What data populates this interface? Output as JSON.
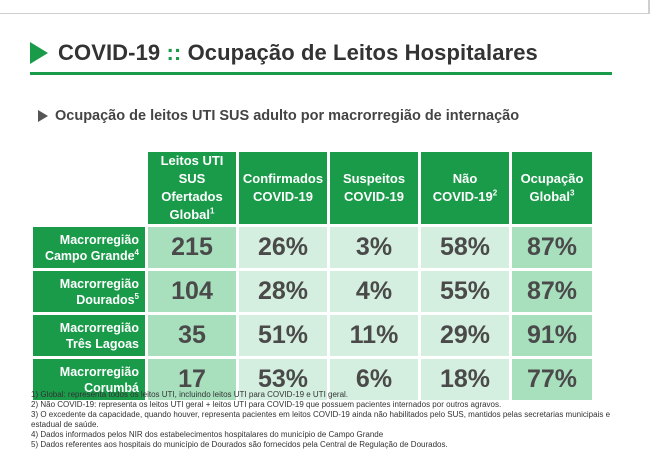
{
  "header": {
    "title_main": "COVID-19",
    "title_sep": "::",
    "title_rest": "Ocupação de Leitos Hospitalares"
  },
  "subtitle": "Ocupação de leitos UTI SUS adulto por macrorregião de internação",
  "table": {
    "columns": [
      {
        "line1": "Leitos UTI SUS",
        "line2": "Ofertados",
        "line3": "Global",
        "sup": "1"
      },
      {
        "line1": "Confirmados",
        "line2": "COVID-19",
        "line3": "",
        "sup": ""
      },
      {
        "line1": "Suspeitos",
        "line2": "COVID-19",
        "line3": "",
        "sup": ""
      },
      {
        "line1": "Não",
        "line2": "COVID-19",
        "line3": "",
        "sup": "2"
      },
      {
        "line1": "Ocupação",
        "line2": "Global",
        "line3": "",
        "sup": "3"
      }
    ],
    "rows": [
      {
        "line1": "Macrorregião",
        "line2": "Campo Grande",
        "sup": "4",
        "values": [
          "215",
          "26%",
          "3%",
          "58%",
          "87%"
        ]
      },
      {
        "line1": "Macrorregião",
        "line2": "Dourados",
        "sup": "5",
        "values": [
          "104",
          "28%",
          "4%",
          "55%",
          "87%"
        ]
      },
      {
        "line1": "Macrorregião",
        "line2": "Três Lagoas",
        "sup": "",
        "values": [
          "35",
          "51%",
          "11%",
          "29%",
          "91%"
        ]
      },
      {
        "line1": "Macrorregião",
        "line2": "Corumbá",
        "sup": "",
        "values": [
          "17",
          "53%",
          "6%",
          "18%",
          "77%"
        ]
      }
    ]
  },
  "footnotes": [
    "1) Global: representa todos os leitos UTI, incluindo leitos UTI para COVID-19 e UTI geral.",
    "2) Não COVID-19: representa os leitos UTI geral + leitos UTI para COVID-19 que possuem pacientes internados por outros agravos.",
    "3) O excedente da capacidade, quando houver, representa pacientes em leitos COVID-19 ainda não habilitados pelo SUS, mantidos pelas secretarias municipais e estadual de saúde.",
    "4) Dados informados pelos NIR dos estabelecimentos hospitalares do município de Campo Grande",
    "5) Dados referentes aos hospitais do município de Dourados são fornecidos pela Central de Regulação de Dourados."
  ],
  "colors": {
    "brand_green": "#1a9b4a",
    "cell_dark": "#a8e0be",
    "cell_light": "#d4efdf"
  }
}
